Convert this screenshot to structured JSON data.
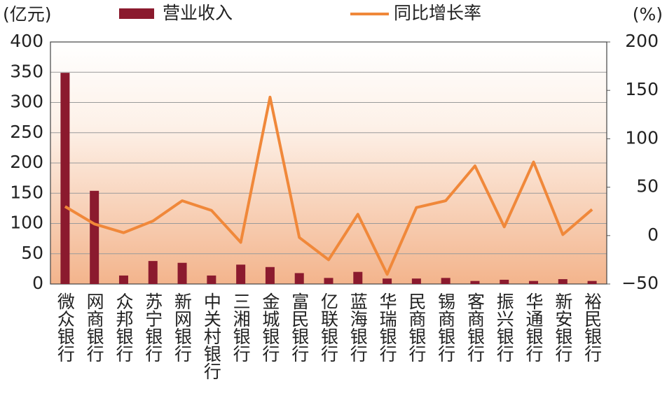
{
  "chart_data": {
    "type": "bar-line",
    "y_label": "(亿元)",
    "y2_label": "(%)",
    "categories": [
      "微众银行",
      "网商银行",
      "众邦银行",
      "苏宁银行",
      "新网银行",
      "中关村银行",
      "三湘银行",
      "金城银行",
      "富民银行",
      "亿联银行",
      "蓝海银行",
      "华瑞银行",
      "民商银行",
      "锡商银行",
      "客商银行",
      "振兴银行",
      "华通银行",
      "新安银行",
      "裕民银行"
    ],
    "series": [
      {
        "name": "营业收入",
        "type": "bar",
        "color": "#8b1a2e",
        "values": [
          349,
          154,
          14,
          38,
          35,
          14,
          32,
          28,
          18,
          10,
          20,
          9,
          9,
          10,
          5,
          7,
          5,
          8,
          5
        ]
      },
      {
        "name": "同比增长率",
        "type": "line",
        "axis": "y2",
        "color": "#f0883a",
        "values": [
          30,
          12,
          3,
          15,
          36,
          26,
          -7,
          143,
          -2,
          -25,
          22,
          -40,
          29,
          36,
          72,
          9,
          76,
          1,
          27
        ]
      }
    ],
    "ylim": [
      0,
      400
    ],
    "yticks": [
      0,
      50,
      100,
      150,
      200,
      250,
      300,
      350,
      400
    ],
    "y2lim": [
      -50,
      200
    ],
    "y2ticks": [
      {
        "value": -50,
        "label": "−50"
      },
      0,
      50,
      100,
      150,
      200
    ],
    "grid": true
  }
}
